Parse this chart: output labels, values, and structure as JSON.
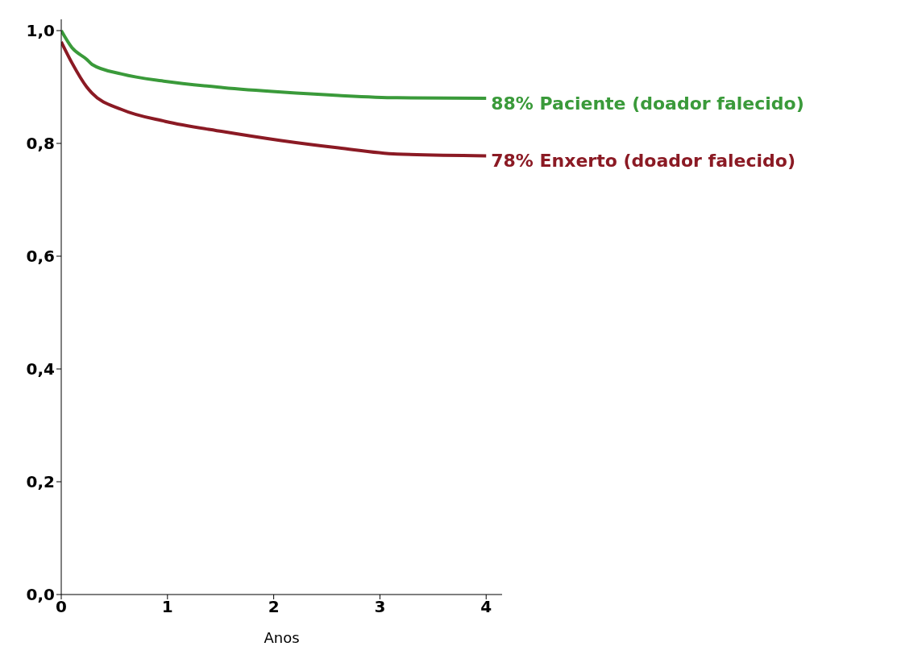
{
  "chart_data": {
    "type": "line",
    "xlabel": "Anos",
    "x": [
      0,
      0.1,
      0.24,
      0.29,
      0.57,
      0.98,
      1.52,
      2.07,
      2.61,
      3.16,
      4.0
    ],
    "series": [
      {
        "name": "88% Paciente (doador falecido)",
        "color": "#3a9a3a",
        "values": [
          1.0,
          0.97,
          0.949,
          0.94,
          0.923,
          0.91,
          0.899,
          0.891,
          0.885,
          0.881,
          0.88
        ]
      },
      {
        "name": "78% Enxerto (doador falecido)",
        "color": "#8b1a24",
        "values": [
          0.98,
          0.943,
          0.9,
          0.889,
          0.86,
          0.839,
          0.821,
          0.805,
          0.792,
          0.781,
          0.778
        ]
      }
    ],
    "xlim": [
      0,
      4.15
    ],
    "xticks": [
      0,
      1,
      2,
      3,
      4
    ],
    "ylim": [
      0,
      1.02
    ],
    "yticks": [
      {
        "value": 0,
        "label": "0,0"
      },
      {
        "value": 0.2,
        "label": "0,2"
      },
      {
        "value": 0.4,
        "label": "0,4"
      },
      {
        "value": 0.6,
        "label": "0,6"
      },
      {
        "value": 0.8,
        "label": "0,8"
      },
      {
        "value": 1,
        "label": "1,0"
      }
    ],
    "grid": false,
    "legend": false,
    "marker": "none",
    "line_style": "solid"
  }
}
